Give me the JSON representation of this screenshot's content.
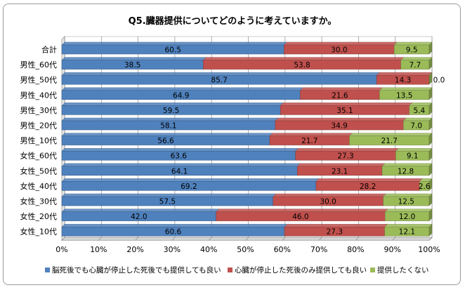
{
  "chart_data": {
    "type": "bar",
    "orientation": "horizontal",
    "stacked": "percent",
    "title": "Q5.臓器提供についてどのように考えていますか。",
    "categories": [
      "合計",
      "男性_60代",
      "男性_50代",
      "男性_40代",
      "男性_30代",
      "男性_20代",
      "男性_10代",
      "女性_60代",
      "女性_50代",
      "女性_40代",
      "女性_30代",
      "女性_20代",
      "女性_10代"
    ],
    "series": [
      {
        "name": "脳死後でも心臓が停止した死後でも提供しても良い",
        "color": "#4f81bd",
        "values": [
          60.5,
          38.5,
          85.7,
          64.9,
          59.5,
          58.1,
          56.6,
          63.6,
          64.1,
          69.2,
          57.5,
          42.0,
          60.6
        ],
        "labels": [
          "60.5",
          "38.5",
          "85.7",
          "64.9",
          "59.5",
          "58.1",
          "56.6",
          "63.6",
          "64.1",
          "69.2",
          "57.5",
          "42.0",
          "60.6"
        ]
      },
      {
        "name": "心臓が停止した死後のみ提供しても良い",
        "color": "#c0504d",
        "values": [
          30.0,
          53.8,
          14.3,
          21.6,
          35.1,
          34.9,
          21.7,
          27.3,
          23.1,
          28.2,
          30.0,
          46.0,
          27.3
        ],
        "labels": [
          "30.0",
          "53.8",
          "14.3",
          "21.6",
          "35.1",
          "34.9",
          "21.7",
          "27.3",
          "23.1",
          "28.2",
          "30.0",
          "46.0",
          "27.3"
        ]
      },
      {
        "name": "提供したくない",
        "color": "#9bbb59",
        "values": [
          9.5,
          7.7,
          0.0,
          13.5,
          5.4,
          7.0,
          21.7,
          9.1,
          12.8,
          2.6,
          12.5,
          12.0,
          12.1
        ],
        "labels": [
          "9.5",
          "7.7",
          "0.0",
          "13.5",
          "5.4",
          "7.0",
          "21.7",
          "9.1",
          "12.8",
          "2.6",
          "12.5",
          "12.0",
          "12.1"
        ]
      }
    ],
    "xlim": [
      0,
      100
    ],
    "xticks": [
      "0%",
      "10%",
      "20%",
      "30%",
      "40%",
      "50%",
      "60%",
      "70%",
      "80%",
      "90%",
      "100%"
    ],
    "legend": "bottom"
  }
}
